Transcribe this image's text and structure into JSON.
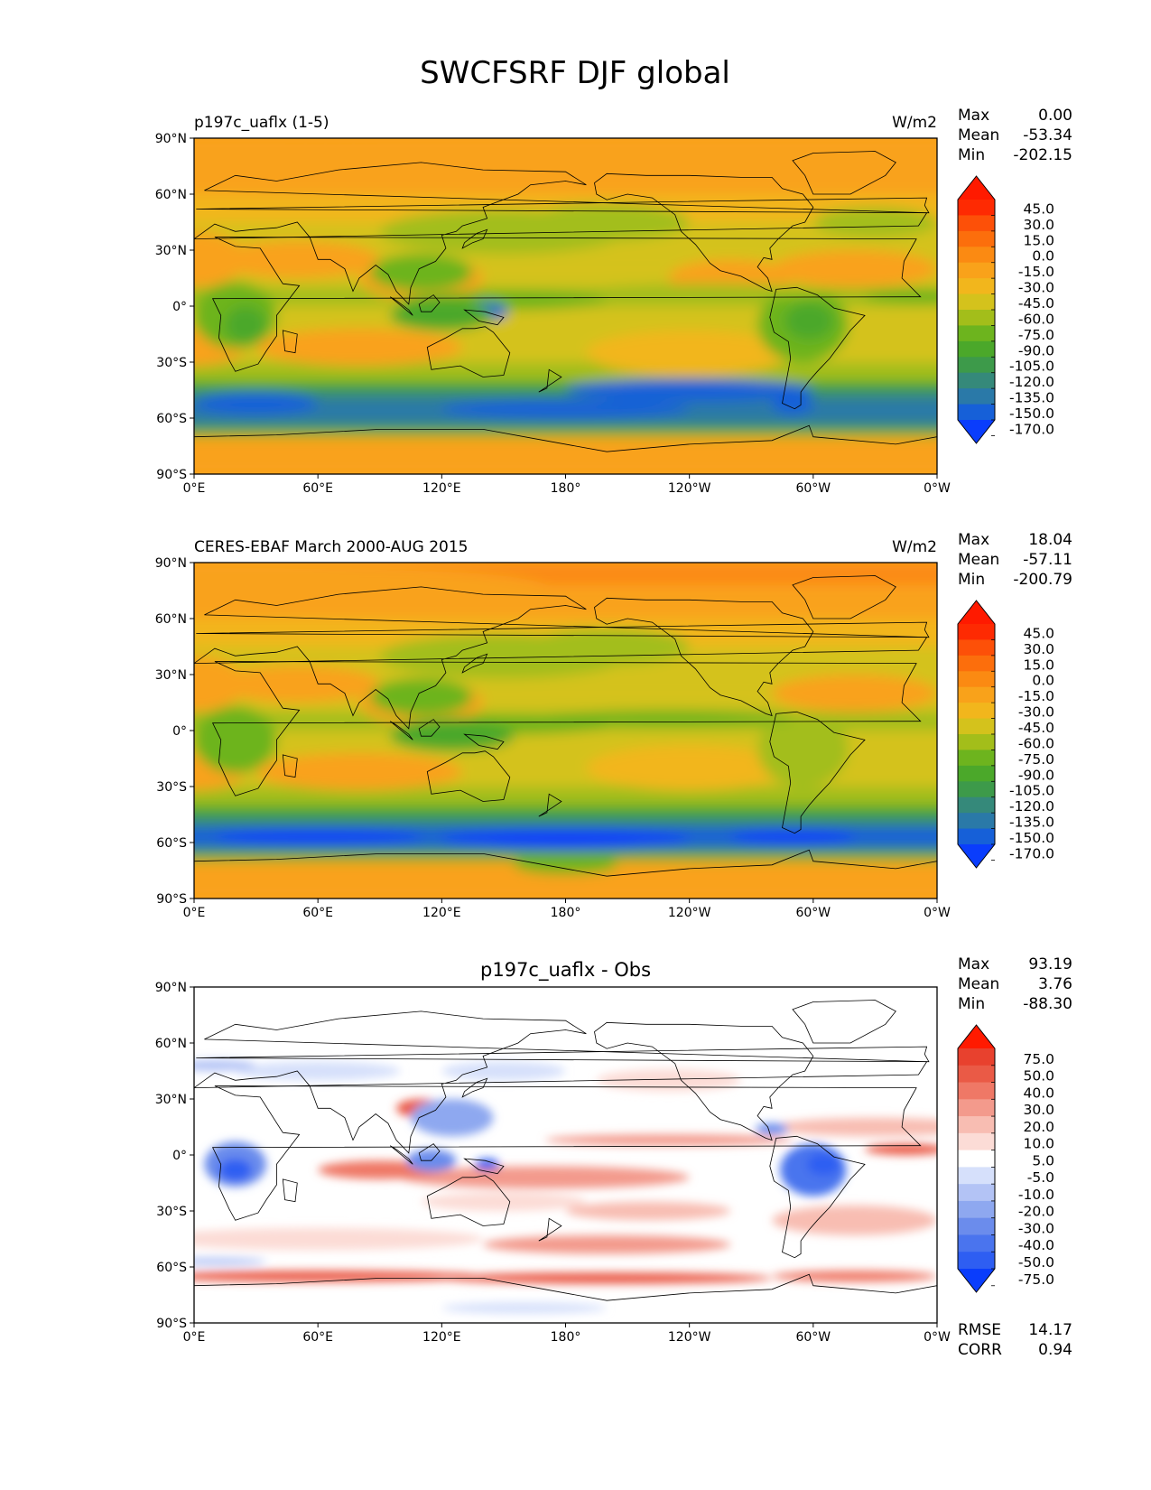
{
  "figure": {
    "title": "SWCFSRF DJF global"
  },
  "x_ticks": [
    "0°E",
    "60°E",
    "120°E",
    "180°",
    "120°W",
    "60°W",
    "0°W"
  ],
  "y_ticks": [
    "90°N",
    "60°N",
    "30°N",
    "0°",
    "30°S",
    "60°S",
    "90°S"
  ],
  "panels": [
    {
      "title_left": "p197c_uaflx (1-5)",
      "title_center": "",
      "units": "W/m2",
      "stats": [
        {
          "label": "Max",
          "value": "0.00"
        },
        {
          "label": "Mean",
          "value": "-53.34"
        },
        {
          "label": "Min",
          "value": "-202.15"
        }
      ],
      "colorbar": {
        "labels": [
          "45.0",
          "30.0",
          "15.0",
          "0.0",
          "-15.0",
          "-30.0",
          "-45.0",
          "-60.0",
          "-75.0",
          "-90.0",
          "-105.0",
          "-120.0",
          "-135.0",
          "-150.0",
          "-170.0"
        ],
        "colors": [
          "#0a3dfc",
          "#1660d8",
          "#2a79a8",
          "#35897a",
          "#3d9a4a",
          "#4ba82a",
          "#6db41e",
          "#a3be1a",
          "#d4c21c",
          "#f2b61c",
          "#f9a21a",
          "#fb8a12",
          "#fc6e0c",
          "#fd5008",
          "#fe2a02",
          "#ff1a00"
        ]
      },
      "extra_stats": []
    },
    {
      "title_left": "CERES-EBAF March 2000-AUG 2015",
      "title_center": "",
      "units": "W/m2",
      "stats": [
        {
          "label": "Max",
          "value": "18.04"
        },
        {
          "label": "Mean",
          "value": "-57.11"
        },
        {
          "label": "Min",
          "value": "-200.79"
        }
      ],
      "colorbar": {
        "labels": [
          "45.0",
          "30.0",
          "15.0",
          "0.0",
          "-15.0",
          "-30.0",
          "-45.0",
          "-60.0",
          "-75.0",
          "-90.0",
          "-105.0",
          "-120.0",
          "-135.0",
          "-150.0",
          "-170.0"
        ],
        "colors": [
          "#0a3dfc",
          "#1660d8",
          "#2a79a8",
          "#35897a",
          "#3d9a4a",
          "#4ba82a",
          "#6db41e",
          "#a3be1a",
          "#d4c21c",
          "#f2b61c",
          "#f9a21a",
          "#fb8a12",
          "#fc6e0c",
          "#fd5008",
          "#fe2a02",
          "#ff1a00"
        ]
      },
      "extra_stats": []
    },
    {
      "title_left": "",
      "title_center": "p197c_uaflx - Obs",
      "units": "",
      "stats": [
        {
          "label": "Max",
          "value": "93.19"
        },
        {
          "label": "Mean",
          "value": "3.76"
        },
        {
          "label": "Min",
          "value": "-88.30"
        }
      ],
      "colorbar": {
        "labels": [
          "75.0",
          "50.0",
          "40.0",
          "30.0",
          "20.0",
          "10.0",
          "5.0",
          "-5.0",
          "-10.0",
          "-20.0",
          "-30.0",
          "-40.0",
          "-50.0",
          "-75.0"
        ],
        "colors": [
          "#0a3dfc",
          "#2e5ef2",
          "#4a74ee",
          "#6b8cec",
          "#8ea8f0",
          "#b3c3f5",
          "#d6e0fb",
          "#ffffff",
          "#fcdcd6",
          "#f8bdb2",
          "#f39a8c",
          "#ef7866",
          "#ea5a46",
          "#e8412e",
          "#ff1a00"
        ]
      },
      "extra_stats": [
        {
          "label": "RMSE",
          "value": "14.17"
        },
        {
          "label": "CORR",
          "value": "0.94"
        }
      ]
    }
  ],
  "chart_data": [
    {
      "type": "heatmap",
      "title": "p197c_uaflx (1-5)",
      "units": "W/m2",
      "x_ticks": [
        "0°E",
        "60°E",
        "120°E",
        "180°",
        "120°W",
        "60°W",
        "0°W"
      ],
      "y_ticks": [
        "90°N",
        "60°N",
        "30°N",
        "0°",
        "30°S",
        "60°S",
        "90°S"
      ],
      "levels": [
        -170.0,
        -150.0,
        -135.0,
        -120.0,
        -105.0,
        -90.0,
        -75.0,
        -60.0,
        -45.0,
        -30.0,
        -15.0,
        0.0,
        15.0,
        30.0,
        45.0
      ],
      "max": 0.0,
      "mean": -53.34,
      "min": -202.15
    },
    {
      "type": "heatmap",
      "title": "CERES-EBAF March 2000-AUG 2015",
      "units": "W/m2",
      "x_ticks": [
        "0°E",
        "60°E",
        "120°E",
        "180°",
        "120°W",
        "60°W",
        "0°W"
      ],
      "y_ticks": [
        "90°N",
        "60°N",
        "30°N",
        "0°",
        "30°S",
        "60°S",
        "90°S"
      ],
      "levels": [
        -170.0,
        -150.0,
        -135.0,
        -120.0,
        -105.0,
        -90.0,
        -75.0,
        -60.0,
        -45.0,
        -30.0,
        -15.0,
        0.0,
        15.0,
        30.0,
        45.0
      ],
      "max": 18.04,
      "mean": -57.11,
      "min": -200.79
    },
    {
      "type": "heatmap",
      "title": "p197c_uaflx - Obs",
      "x_ticks": [
        "0°E",
        "60°E",
        "120°E",
        "180°",
        "120°W",
        "60°W",
        "0°W"
      ],
      "y_ticks": [
        "90°N",
        "60°N",
        "30°N",
        "0°",
        "30°S",
        "60°S",
        "90°S"
      ],
      "levels": [
        -75.0,
        -50.0,
        -40.0,
        -30.0,
        -20.0,
        -10.0,
        -5.0,
        5.0,
        10.0,
        20.0,
        30.0,
        40.0,
        50.0,
        75.0
      ],
      "max": 93.19,
      "mean": 3.76,
      "min": -88.3,
      "rmse": 14.17,
      "corr": 0.94
    }
  ]
}
